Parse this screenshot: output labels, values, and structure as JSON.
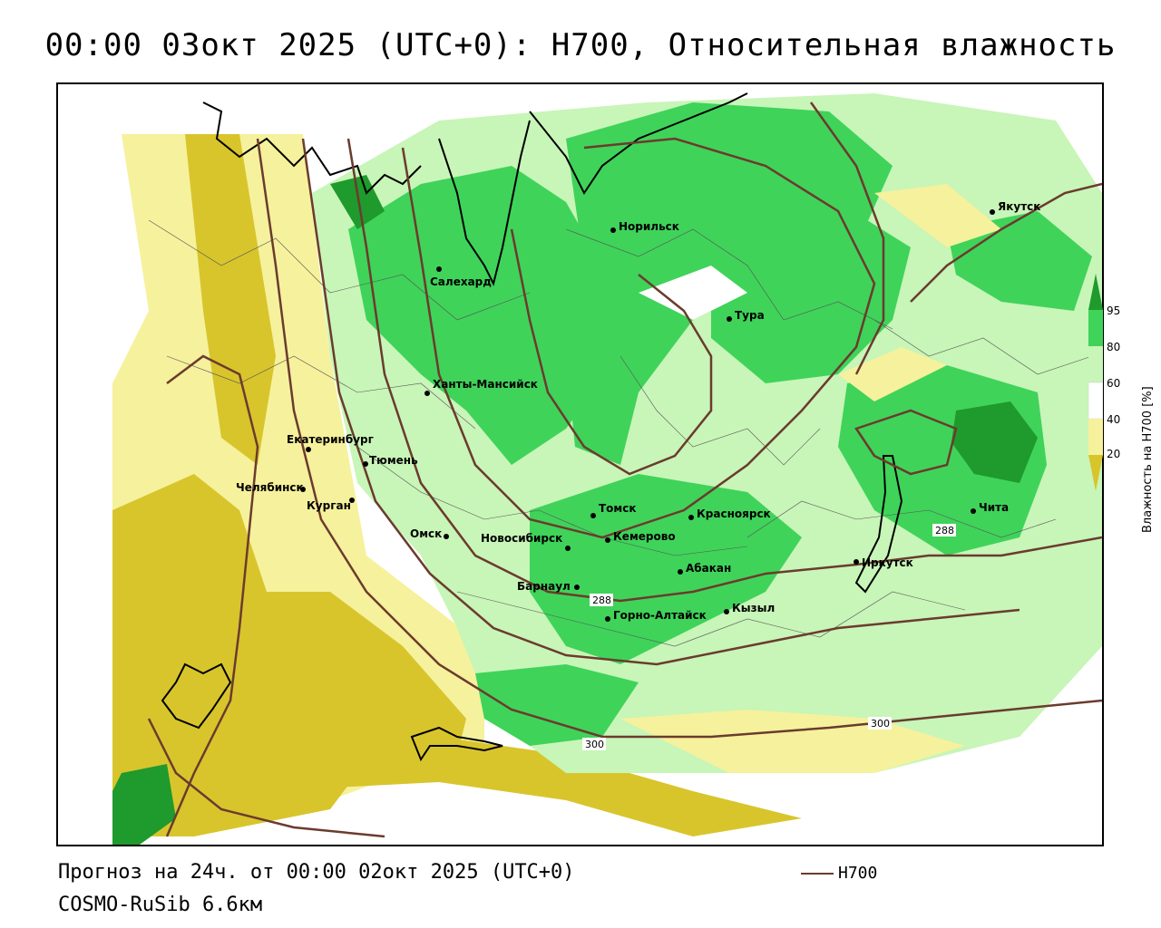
{
  "title": "00:00 03окт 2025 (UTC+0): H700, Относительная влажность",
  "footer": {
    "forecast": "Прогноз на 24ч. от 00:00 02окт 2025 (UTC+0)",
    "model": "COSMO-RuSib 6.6км"
  },
  "legend": {
    "line_label": "H700",
    "line_color": "#6b3b2e"
  },
  "colorbar": {
    "title": "Влажность на H700 [%]",
    "ticks": [
      "95",
      "80",
      "60",
      "40",
      "20"
    ],
    "colors": {
      "very_dry": "#d8c52c",
      "dry": "#f6f19c",
      "neutral": "#ffffff",
      "moist": "#c8f5b8",
      "wet": "#3fd35a",
      "very_wet": "#1f9a2c"
    }
  },
  "isolines": {
    "labels": [
      "288",
      "288",
      "300",
      "300"
    ]
  },
  "cities": [
    {
      "name": "Норильск"
    },
    {
      "name": "Якутск"
    },
    {
      "name": "Салехард"
    },
    {
      "name": "Тура"
    },
    {
      "name": "Ханты-Мансийск"
    },
    {
      "name": "Екатеринбург"
    },
    {
      "name": "Тюмень"
    },
    {
      "name": "Челябинск"
    },
    {
      "name": "Курган"
    },
    {
      "name": "Омск"
    },
    {
      "name": "Новосибирск"
    },
    {
      "name": "Томск"
    },
    {
      "name": "Кемерово"
    },
    {
      "name": "Красноярск"
    },
    {
      "name": "Абакан"
    },
    {
      "name": "Барнаул"
    },
    {
      "name": "Горно-Алтайск"
    },
    {
      "name": "Кызыл"
    },
    {
      "name": "Иркутск"
    },
    {
      "name": "Чита"
    }
  ]
}
